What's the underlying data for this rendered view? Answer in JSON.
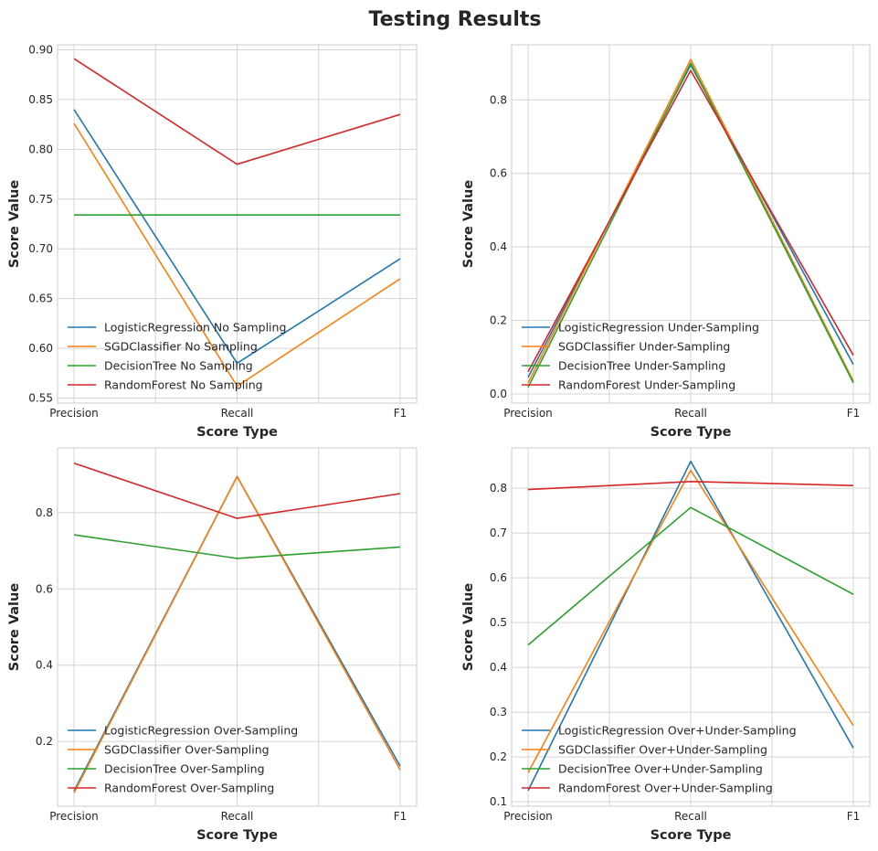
{
  "figure": {
    "title": "Testing Results"
  },
  "chart_data": [
    {
      "type": "line",
      "xlabel": "Score Type",
      "ylabel": "Score Value",
      "categories": [
        "Precision",
        "Recall",
        "F1"
      ],
      "ylim": [
        0.545,
        0.905
      ],
      "yticks": [
        0.55,
        0.6,
        0.65,
        0.7,
        0.75,
        0.8,
        0.85,
        0.9
      ],
      "ytick_labels": [
        "0.55",
        "0.60",
        "0.65",
        "0.70",
        "0.75",
        "0.80",
        "0.85",
        "0.90"
      ],
      "grid": true,
      "legend": "lower-left",
      "series": [
        {
          "name": "LogisticRegression No Sampling",
          "color": "#1f77b4",
          "values": [
            0.84,
            0.585,
            0.69
          ]
        },
        {
          "name": "SGDClassifier No Sampling",
          "color": "#ff7f0e",
          "values": [
            0.826,
            0.562,
            0.67
          ]
        },
        {
          "name": "DecisionTree No Sampling",
          "color": "#2ca02c",
          "values": [
            0.734,
            0.734,
            0.734
          ]
        },
        {
          "name": "RandomForest No Sampling",
          "color": "#d62728",
          "values": [
            0.891,
            0.785,
            0.835
          ]
        }
      ]
    },
    {
      "type": "line",
      "xlabel": "Score Type",
      "ylabel": "Score Value",
      "categories": [
        "Precision",
        "Recall",
        "F1"
      ],
      "ylim": [
        -0.025,
        0.95
      ],
      "yticks": [
        0,
        0.2,
        0.4,
        0.6,
        0.8
      ],
      "ytick_labels": [
        "0.0",
        "0.2",
        "0.4",
        "0.6",
        "0.8"
      ],
      "grid": true,
      "legend": "lower-left",
      "series": [
        {
          "name": "LogisticRegression Under-Sampling",
          "color": "#1f77b4",
          "values": [
            0.045,
            0.895,
            0.08
          ]
        },
        {
          "name": "SGDClassifier Under-Sampling",
          "color": "#ff7f0e",
          "values": [
            0.03,
            0.91,
            0.035
          ]
        },
        {
          "name": "DecisionTree Under-Sampling",
          "color": "#2ca02c",
          "values": [
            0.018,
            0.9,
            0.03
          ]
        },
        {
          "name": "RandomForest Under-Sampling",
          "color": "#d62728",
          "values": [
            0.06,
            0.88,
            0.105
          ]
        }
      ]
    },
    {
      "type": "line",
      "xlabel": "Score Type",
      "ylabel": "Score Value",
      "categories": [
        "Precision",
        "Recall",
        "F1"
      ],
      "ylim": [
        0.03,
        0.97
      ],
      "yticks": [
        0.2,
        0.4,
        0.6,
        0.8
      ],
      "ytick_labels": [
        "0.2",
        "0.4",
        "0.6",
        "0.8"
      ],
      "grid": true,
      "legend": "lower-left",
      "series": [
        {
          "name": "LogisticRegression Over-Sampling",
          "color": "#1f77b4",
          "values": [
            0.07,
            0.895,
            0.135
          ]
        },
        {
          "name": "SGDClassifier Over-Sampling",
          "color": "#ff7f0e",
          "values": [
            0.065,
            0.895,
            0.125
          ]
        },
        {
          "name": "DecisionTree Over-Sampling",
          "color": "#2ca02c",
          "values": [
            0.742,
            0.68,
            0.71
          ]
        },
        {
          "name": "RandomForest Over-Sampling",
          "color": "#d62728",
          "values": [
            0.93,
            0.785,
            0.85
          ]
        }
      ]
    },
    {
      "type": "line",
      "xlabel": "Score Type",
      "ylabel": "Score Value",
      "categories": [
        "Precision",
        "Recall",
        "F1"
      ],
      "ylim": [
        0.09,
        0.89
      ],
      "yticks": [
        0.1,
        0.2,
        0.3,
        0.4,
        0.5,
        0.6,
        0.7,
        0.8
      ],
      "ytick_labels": [
        "0.1",
        "0.2",
        "0.3",
        "0.4",
        "0.5",
        "0.6",
        "0.7",
        "0.8"
      ],
      "grid": true,
      "legend": "lower-left",
      "series": [
        {
          "name": "LogisticRegression Over+Under-Sampling",
          "color": "#1f77b4",
          "values": [
            0.125,
            0.86,
            0.22
          ]
        },
        {
          "name": "SGDClassifier Over+Under-Sampling",
          "color": "#ff7f0e",
          "values": [
            0.165,
            0.84,
            0.27
          ]
        },
        {
          "name": "DecisionTree Over+Under-Sampling",
          "color": "#2ca02c",
          "values": [
            0.45,
            0.757,
            0.563
          ]
        },
        {
          "name": "RandomForest Over+Under-Sampling",
          "color": "#d62728",
          "values": [
            0.797,
            0.815,
            0.806
          ]
        }
      ]
    }
  ]
}
